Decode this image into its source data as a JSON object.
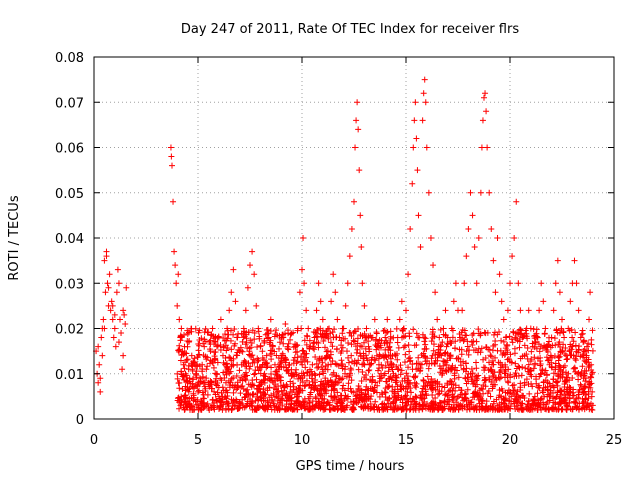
{
  "chart_data": {
    "type": "scatter",
    "title": "Day 247 of 2011, Rate Of TEC Index for receiver flrs",
    "xlabel": "GPS time / hours",
    "ylabel": "ROTI / TECUs",
    "xlim": [
      0,
      25
    ],
    "ylim": [
      0,
      0.08
    ],
    "x_ticks": [
      0,
      5,
      10,
      15,
      20,
      25
    ],
    "y_ticks": [
      0,
      0.01,
      0.02,
      0.03,
      0.04,
      0.05,
      0.06,
      0.07,
      0.08
    ],
    "x_tick_labels": [
      "0",
      "5",
      "10",
      "15",
      "20",
      "25"
    ],
    "y_tick_labels": [
      "0",
      "0.01",
      "0.02",
      "0.03",
      "0.04",
      "0.05",
      "0.06",
      "0.07",
      "0.08"
    ],
    "grid": true,
    "marker": "plus",
    "marker_color": "#ff0000",
    "series": [
      {
        "points": [
          [
            0.1,
            0.015
          ],
          [
            0.15,
            0.01
          ],
          [
            0.2,
            0.008
          ],
          [
            0.25,
            0.012
          ],
          [
            0.3,
            0.006
          ],
          [
            0.35,
            0.018
          ],
          [
            0.4,
            0.014
          ],
          [
            0.45,
            0.022
          ],
          [
            0.5,
            0.02
          ],
          [
            0.55,
            0.028
          ],
          [
            0.6,
            0.036
          ],
          [
            0.65,
            0.03
          ],
          [
            0.7,
            0.025
          ],
          [
            0.75,
            0.032
          ],
          [
            0.8,
            0.024
          ],
          [
            0.85,
            0.026
          ],
          [
            0.9,
            0.022
          ],
          [
            0.95,
            0.018
          ],
          [
            1.0,
            0.02
          ],
          [
            1.05,
            0.016
          ],
          [
            1.1,
            0.028
          ],
          [
            1.15,
            0.033
          ],
          [
            1.2,
            0.03
          ],
          [
            1.25,
            0.022
          ],
          [
            1.3,
            0.019
          ],
          [
            1.35,
            0.011
          ],
          [
            1.4,
            0.014
          ],
          [
            1.45,
            0.023
          ],
          [
            1.5,
            0.021
          ],
          [
            1.55,
            0.029
          ],
          [
            0.2,
            0.016
          ],
          [
            0.3,
            0.009
          ],
          [
            0.5,
            0.035
          ],
          [
            0.6,
            0.037
          ],
          [
            0.9,
            0.025
          ],
          [
            1.2,
            0.017
          ],
          [
            1.4,
            0.024
          ],
          [
            0.4,
            0.02
          ],
          [
            0.7,
            0.029
          ],
          [
            1.0,
            0.023
          ],
          [
            3.7,
            0.06
          ],
          [
            3.72,
            0.058
          ],
          [
            3.75,
            0.056
          ],
          [
            3.8,
            0.048
          ],
          [
            3.85,
            0.037
          ],
          [
            3.9,
            0.034
          ],
          [
            3.95,
            0.03
          ],
          [
            4.0,
            0.025
          ],
          [
            4.05,
            0.032
          ],
          [
            4.1,
            0.022
          ],
          [
            4.15,
            0.018
          ],
          [
            4.2,
            0.02
          ],
          [
            4.25,
            0.015
          ],
          [
            4.3,
            0.012
          ],
          [
            4.35,
            0.016
          ],
          [
            4.4,
            0.01
          ],
          [
            4.45,
            0.013
          ],
          [
            4.5,
            0.008
          ],
          [
            4.55,
            0.011
          ],
          [
            4.6,
            0.009
          ],
          [
            4.7,
            0.014
          ],
          [
            4.8,
            0.007
          ],
          [
            4.9,
            0.01
          ],
          [
            5.0,
            0.006
          ],
          [
            5.1,
            0.009
          ],
          [
            5.2,
            0.012
          ],
          [
            5.3,
            0.016
          ],
          [
            5.4,
            0.011
          ],
          [
            5.5,
            0.008
          ],
          [
            5.6,
            0.015
          ],
          [
            5.7,
            0.02
          ],
          [
            5.8,
            0.013
          ],
          [
            5.9,
            0.01
          ],
          [
            6.0,
            0.018
          ],
          [
            6.1,
            0.022
          ],
          [
            6.2,
            0.014
          ],
          [
            6.3,
            0.012
          ],
          [
            6.4,
            0.02
          ],
          [
            6.5,
            0.024
          ],
          [
            6.6,
            0.028
          ],
          [
            6.7,
            0.033
          ],
          [
            6.8,
            0.026
          ],
          [
            6.9,
            0.018
          ],
          [
            7.0,
            0.015
          ],
          [
            7.1,
            0.012
          ],
          [
            7.2,
            0.02
          ],
          [
            7.3,
            0.024
          ],
          [
            7.4,
            0.029
          ],
          [
            7.5,
            0.034
          ],
          [
            7.6,
            0.037
          ],
          [
            7.7,
            0.032
          ],
          [
            7.8,
            0.025
          ],
          [
            7.9,
            0.02
          ],
          [
            8.0,
            0.016
          ],
          [
            8.1,
            0.012
          ],
          [
            8.2,
            0.01
          ],
          [
            8.3,
            0.014
          ],
          [
            8.4,
            0.018
          ],
          [
            8.5,
            0.022
          ],
          [
            8.6,
            0.016
          ],
          [
            8.7,
            0.012
          ],
          [
            8.8,
            0.009
          ],
          [
            8.9,
            0.011
          ],
          [
            9.0,
            0.014
          ],
          [
            9.1,
            0.018
          ],
          [
            9.2,
            0.021
          ],
          [
            9.3,
            0.016
          ],
          [
            9.4,
            0.012
          ],
          [
            9.5,
            0.01
          ],
          [
            9.6,
            0.013
          ],
          [
            9.7,
            0.016
          ],
          [
            9.8,
            0.02
          ],
          [
            9.9,
            0.028
          ],
          [
            10.0,
            0.033
          ],
          [
            10.05,
            0.04
          ],
          [
            10.1,
            0.03
          ],
          [
            10.2,
            0.024
          ],
          [
            10.3,
            0.02
          ],
          [
            10.4,
            0.016
          ],
          [
            10.5,
            0.012
          ],
          [
            10.6,
            0.018
          ],
          [
            10.7,
            0.024
          ],
          [
            10.8,
            0.03
          ],
          [
            10.9,
            0.026
          ],
          [
            11.0,
            0.022
          ],
          [
            11.1,
            0.018
          ],
          [
            11.2,
            0.014
          ],
          [
            11.3,
            0.02
          ],
          [
            11.4,
            0.026
          ],
          [
            11.5,
            0.032
          ],
          [
            11.6,
            0.028
          ],
          [
            11.7,
            0.022
          ],
          [
            11.8,
            0.018
          ],
          [
            11.9,
            0.015
          ],
          [
            12.0,
            0.02
          ],
          [
            12.1,
            0.025
          ],
          [
            12.2,
            0.03
          ],
          [
            12.3,
            0.036
          ],
          [
            12.4,
            0.042
          ],
          [
            12.5,
            0.048
          ],
          [
            12.55,
            0.06
          ],
          [
            12.6,
            0.066
          ],
          [
            12.65,
            0.07
          ],
          [
            12.7,
            0.064
          ],
          [
            12.75,
            0.055
          ],
          [
            12.8,
            0.045
          ],
          [
            12.85,
            0.038
          ],
          [
            12.9,
            0.03
          ],
          [
            13.0,
            0.025
          ],
          [
            13.1,
            0.02
          ],
          [
            13.2,
            0.016
          ],
          [
            13.3,
            0.012
          ],
          [
            13.4,
            0.018
          ],
          [
            13.5,
            0.022
          ],
          [
            13.6,
            0.016
          ],
          [
            13.7,
            0.012
          ],
          [
            13.8,
            0.01
          ],
          [
            13.9,
            0.014
          ],
          [
            14.0,
            0.018
          ],
          [
            14.1,
            0.022
          ],
          [
            14.2,
            0.016
          ],
          [
            14.3,
            0.012
          ],
          [
            14.4,
            0.01
          ],
          [
            14.5,
            0.014
          ],
          [
            14.6,
            0.018
          ],
          [
            14.7,
            0.022
          ],
          [
            14.8,
            0.026
          ],
          [
            14.9,
            0.02
          ],
          [
            15.0,
            0.024
          ],
          [
            15.1,
            0.032
          ],
          [
            15.2,
            0.042
          ],
          [
            15.3,
            0.052
          ],
          [
            15.35,
            0.06
          ],
          [
            15.4,
            0.066
          ],
          [
            15.45,
            0.07
          ],
          [
            15.5,
            0.062
          ],
          [
            15.55,
            0.055
          ],
          [
            15.6,
            0.045
          ],
          [
            15.7,
            0.038
          ],
          [
            15.8,
            0.066
          ],
          [
            15.85,
            0.072
          ],
          [
            15.9,
            0.075
          ],
          [
            15.95,
            0.07
          ],
          [
            16.0,
            0.06
          ],
          [
            16.1,
            0.05
          ],
          [
            16.2,
            0.04
          ],
          [
            16.3,
            0.034
          ],
          [
            16.4,
            0.028
          ],
          [
            16.5,
            0.022
          ],
          [
            16.6,
            0.018
          ],
          [
            16.7,
            0.014
          ],
          [
            16.8,
            0.02
          ],
          [
            16.9,
            0.024
          ],
          [
            17.0,
            0.018
          ],
          [
            17.1,
            0.014
          ],
          [
            17.2,
            0.02
          ],
          [
            17.3,
            0.026
          ],
          [
            17.4,
            0.03
          ],
          [
            17.5,
            0.024
          ],
          [
            17.6,
            0.018
          ],
          [
            17.7,
            0.024
          ],
          [
            17.8,
            0.03
          ],
          [
            17.9,
            0.036
          ],
          [
            18.0,
            0.042
          ],
          [
            18.1,
            0.05
          ],
          [
            18.2,
            0.045
          ],
          [
            18.3,
            0.038
          ],
          [
            18.4,
            0.03
          ],
          [
            18.5,
            0.04
          ],
          [
            18.6,
            0.05
          ],
          [
            18.65,
            0.06
          ],
          [
            18.7,
            0.066
          ],
          [
            18.75,
            0.071
          ],
          [
            18.8,
            0.072
          ],
          [
            18.85,
            0.068
          ],
          [
            18.9,
            0.06
          ],
          [
            19.0,
            0.05
          ],
          [
            19.1,
            0.042
          ],
          [
            19.2,
            0.035
          ],
          [
            19.3,
            0.028
          ],
          [
            19.4,
            0.04
          ],
          [
            19.5,
            0.032
          ],
          [
            19.6,
            0.026
          ],
          [
            19.7,
            0.022
          ],
          [
            19.8,
            0.018
          ],
          [
            19.9,
            0.024
          ],
          [
            20.0,
            0.03
          ],
          [
            20.1,
            0.036
          ],
          [
            20.2,
            0.04
          ],
          [
            20.3,
            0.048
          ],
          [
            20.4,
            0.03
          ],
          [
            20.5,
            0.024
          ],
          [
            20.6,
            0.018
          ],
          [
            20.7,
            0.014
          ],
          [
            20.8,
            0.02
          ],
          [
            20.9,
            0.024
          ],
          [
            21.0,
            0.02
          ],
          [
            21.1,
            0.016
          ],
          [
            21.2,
            0.012
          ],
          [
            21.3,
            0.018
          ],
          [
            21.4,
            0.024
          ],
          [
            21.5,
            0.03
          ],
          [
            21.6,
            0.026
          ],
          [
            21.7,
            0.02
          ],
          [
            21.8,
            0.016
          ],
          [
            21.9,
            0.012
          ],
          [
            22.0,
            0.018
          ],
          [
            22.1,
            0.024
          ],
          [
            22.2,
            0.03
          ],
          [
            22.3,
            0.035
          ],
          [
            22.4,
            0.028
          ],
          [
            22.5,
            0.022
          ],
          [
            22.6,
            0.018
          ],
          [
            22.7,
            0.014
          ],
          [
            22.8,
            0.02
          ],
          [
            22.9,
            0.026
          ],
          [
            23.0,
            0.03
          ],
          [
            23.1,
            0.035
          ],
          [
            23.2,
            0.03
          ],
          [
            23.3,
            0.024
          ],
          [
            23.4,
            0.018
          ],
          [
            23.5,
            0.014
          ],
          [
            23.6,
            0.01
          ],
          [
            23.7,
            0.016
          ],
          [
            23.8,
            0.022
          ],
          [
            23.85,
            0.028
          ],
          [
            23.9,
            0.012
          ],
          [
            23.95,
            0.006
          ],
          [
            23.8,
            0.008
          ],
          [
            23.5,
            0.006
          ]
        ]
      }
    ],
    "dense_band": {
      "x_start": 4.0,
      "x_end": 24.0,
      "y_min": 0.002,
      "y_max": 0.02,
      "count": 2600,
      "seed": 247
    }
  }
}
